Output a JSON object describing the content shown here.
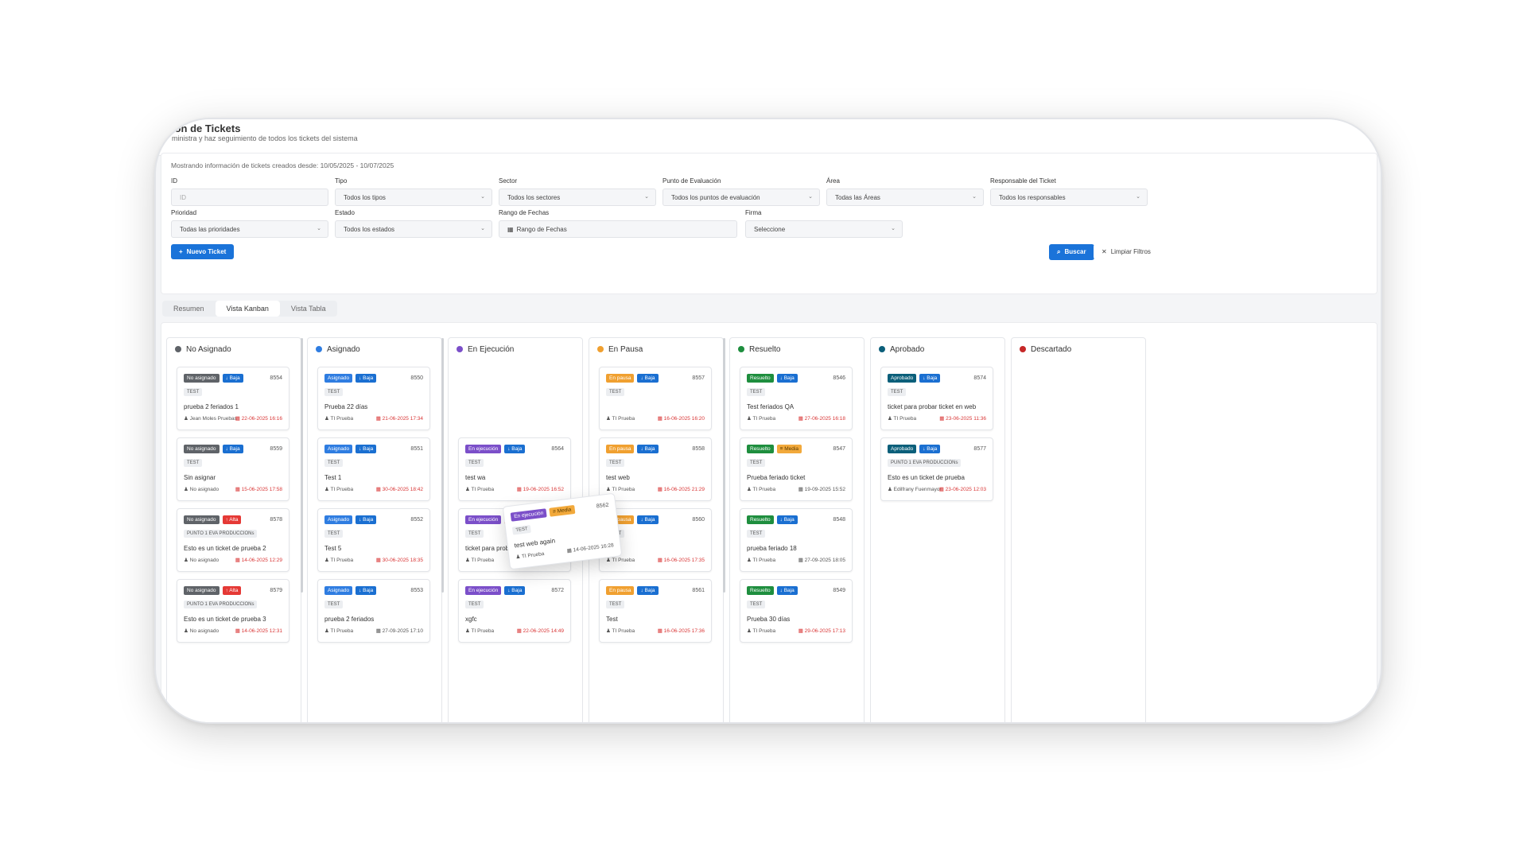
{
  "header": {
    "title": "ión de Tickets",
    "subtitle": "ministra y haz seguimiento de todos los tickets del sistema"
  },
  "filters": {
    "info": "Mostrando información de tickets creados desde: 10/05/2025 - 10/07/2025",
    "id": {
      "label": "ID",
      "placeholder": "ID"
    },
    "tipo": {
      "label": "Tipo",
      "value": "Todos los tipos"
    },
    "sector": {
      "label": "Sector",
      "value": "Todos los sectores"
    },
    "punto": {
      "label": "Punto de Evaluación",
      "value": "Todos los puntos de evaluación"
    },
    "area": {
      "label": "Área",
      "value": "Todas las Áreas"
    },
    "responsable": {
      "label": "Responsable del Ticket",
      "value": "Todos los responsables"
    },
    "prioridad": {
      "label": "Prioridad",
      "value": "Todas las prioridades"
    },
    "estado": {
      "label": "Estado",
      "value": "Todos los estados"
    },
    "rango": {
      "label": "Rango de Fechas",
      "value": "Rango de Fechas"
    },
    "firma": {
      "label": "Firma",
      "value": "Seleccione"
    },
    "new_ticket": "Nuevo Ticket",
    "search": "Buscar",
    "clear": "Limpiar Filtros"
  },
  "tabs": [
    "Resumen",
    "Vista Kanban",
    "Vista Tabla"
  ],
  "colors": {
    "primary": "#1a73d9",
    "no_asignado": "#5f6368",
    "asignado": "#2f7de1",
    "en_ejecucion": "#7b4fc9",
    "en_pausa": "#f0a030",
    "resuelto": "#1e8e3e",
    "aprobado": "#0b5f7a",
    "descartado": "#c62828",
    "baja": "#1a6fd1",
    "alta": "#e53935",
    "media": "#f2a93b"
  },
  "columns": [
    {
      "name": "No Asignado",
      "cards": [
        {
          "status": "No asignado",
          "priority": "Baja",
          "id": "8554",
          "tag": "TEST",
          "title": "prueba 2 feriados 1",
          "user": "Jean Moles Pruebas",
          "date": "22-06-2025 16:16"
        },
        {
          "status": "No asignado",
          "priority": "Baja",
          "id": "8559",
          "tag": "TEST",
          "title": "Sin asignar",
          "user": "No asignado",
          "date": "15-06-2025 17:58"
        },
        {
          "status": "No asignado",
          "priority": "Alta",
          "id": "8578",
          "tag": "PUNTO 1 EVA PRODUCCIONs",
          "title": "Esto es un ticket de prueba 2",
          "user": "No asignado",
          "date": "14-06-2025 12:29"
        },
        {
          "status": "No asignado",
          "priority": "Alta",
          "id": "8579",
          "tag": "PUNTO 1 EVA PRODUCCIONs",
          "title": "Esto es un ticket de prueba 3",
          "user": "No asignado",
          "date": "14-06-2025 12:31"
        }
      ]
    },
    {
      "name": "Asignado",
      "cards": [
        {
          "status": "Asignado",
          "priority": "Baja",
          "id": "8550",
          "tag": "TEST",
          "title": "Prueba 22 días",
          "user": "TI Prueba",
          "date": "21-06-2025 17:34"
        },
        {
          "status": "Asignado",
          "priority": "Baja",
          "id": "8551",
          "tag": "TEST",
          "title": "Test 1",
          "user": "TI Prueba",
          "date": "30-06-2025 18:42"
        },
        {
          "status": "Asignado",
          "priority": "Baja",
          "id": "8552",
          "tag": "TEST",
          "title": "Test 5",
          "user": "TI Prueba",
          "date": "30-06-2025 18:35"
        },
        {
          "status": "Asignado",
          "priority": "Baja",
          "id": "8553",
          "tag": "TEST",
          "title": "prueba 2 feriados",
          "user": "TI Prueba",
          "date": "27-09-2025 17:10"
        }
      ]
    },
    {
      "name": "En Ejecución",
      "cards": [
        {
          "status": "En ejecución",
          "priority": "Baja",
          "id": "8564",
          "tag": "TEST",
          "title": "test wa",
          "user": "TI Prueba",
          "date": "19-06-2025 16:52"
        },
        {
          "status": "En ejecución",
          "priority": "Alta",
          "id": "8570",
          "tag": "TEST",
          "title": "ticket para probar ticket en web",
          "user": "TI Prueba",
          "date": "12-06-2025 17:36"
        },
        {
          "status": "En ejecución",
          "priority": "Baja",
          "id": "8572",
          "tag": "TEST",
          "title": "xgfc",
          "user": "TI Prueba",
          "date": "22-06-2025 14:49"
        }
      ]
    },
    {
      "name": "En Pausa",
      "cards": [
        {
          "status": "En pausa",
          "priority": "Baja",
          "id": "8557",
          "tag": "TEST",
          "title": "",
          "user": "TI Prueba",
          "date": "16-06-2025 16:20"
        },
        {
          "status": "En pausa",
          "priority": "Baja",
          "id": "8558",
          "tag": "TEST",
          "title": "test web",
          "user": "TI Prueba",
          "date": "16-06-2025 21:29"
        },
        {
          "status": "En pausa",
          "priority": "Baja",
          "id": "8560",
          "tag": "TEST",
          "title": "Hzbs",
          "user": "TI Prueba",
          "date": "16-06-2025 17:35"
        },
        {
          "status": "En pausa",
          "priority": "Baja",
          "id": "8561",
          "tag": "TEST",
          "title": "Test",
          "user": "TI Prueba",
          "date": "16-06-2025 17:36"
        }
      ]
    },
    {
      "name": "Resuelto",
      "cards": [
        {
          "status": "Resuelto",
          "priority": "Baja",
          "id": "8546",
          "tag": "TEST",
          "title": "Test feriados QA",
          "user": "TI Prueba",
          "date": "27-06-2025 16:18"
        },
        {
          "status": "Resuelto",
          "priority": "Media",
          "id": "8547",
          "tag": "TEST",
          "title": "Prueba feriado ticket",
          "user": "TI Prueba",
          "date": "19-09-2025 15:52"
        },
        {
          "status": "Resuelto",
          "priority": "Baja",
          "id": "8548",
          "tag": "TEST",
          "title": "prueba feriado 18",
          "user": "TI Prueba",
          "date": "27-09-2025 18:05"
        },
        {
          "status": "Resuelto",
          "priority": "Baja",
          "id": "8549",
          "tag": "TEST",
          "title": "Prueba 30 días",
          "user": "TI Prueba",
          "date": "29-06-2025 17:13"
        }
      ]
    },
    {
      "name": "Aprobado",
      "cards": [
        {
          "status": "Aprobado",
          "priority": "Baja",
          "id": "8574",
          "tag": "TEST",
          "title": "ticket para probar ticket en web",
          "user": "TI Prueba",
          "date": "23-06-2025 11:36"
        },
        {
          "status": "Aprobado",
          "priority": "Baja",
          "id": "8577",
          "tag": "PUNTO 1 EVA PRODUCCIONs",
          "title": "Esto es un ticket de prueba",
          "user": "Edilfrany Fuenmayor",
          "date": "23-06-2025 12:03"
        }
      ]
    },
    {
      "name": "Descartado",
      "cards": []
    }
  ],
  "dragging_card": {
    "status": "En ejecución",
    "priority": "Media",
    "id": "8562",
    "tag": "TEST",
    "title": "test web again",
    "user": "TI Prueba",
    "date": "14-06-2025 16:28"
  }
}
